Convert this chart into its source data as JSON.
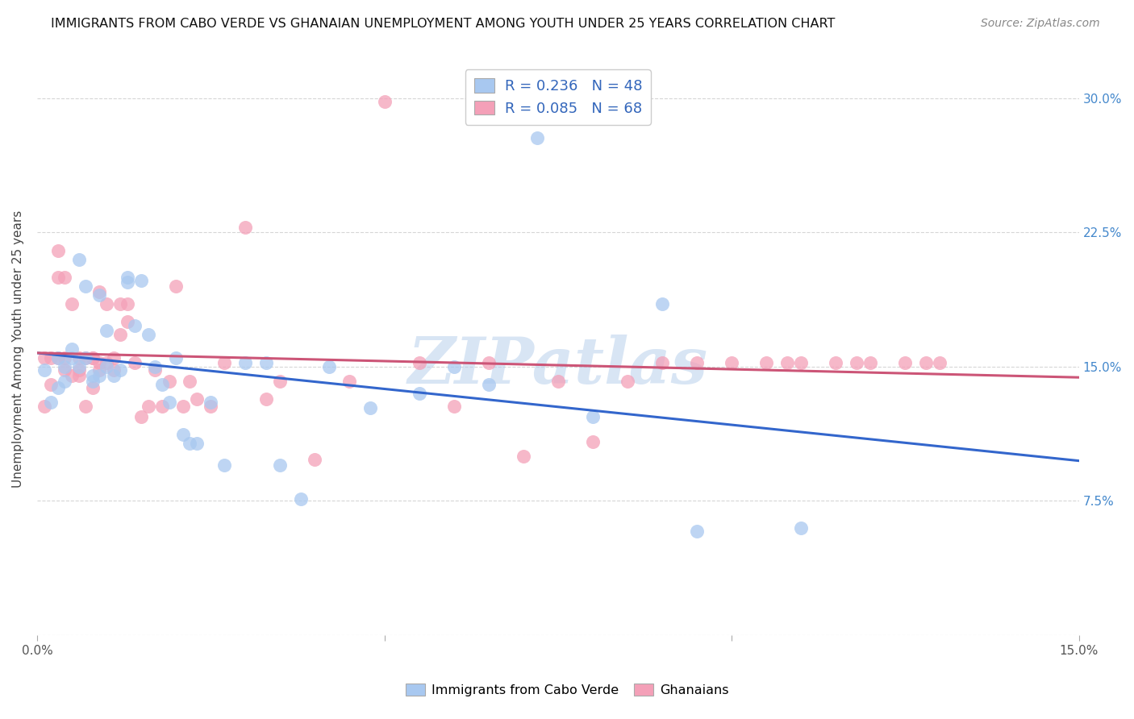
{
  "title": "IMMIGRANTS FROM CABO VERDE VS GHANAIAN UNEMPLOYMENT AMONG YOUTH UNDER 25 YEARS CORRELATION CHART",
  "source": "Source: ZipAtlas.com",
  "ylabel": "Unemployment Among Youth under 25 years",
  "xlim": [
    0.0,
    0.15
  ],
  "ylim": [
    0.0,
    0.32
  ],
  "xticks": [
    0.0,
    0.05,
    0.1,
    0.15
  ],
  "xticklabels": [
    "0.0%",
    "",
    "",
    "15.0%"
  ],
  "yticks": [
    0.0,
    0.075,
    0.15,
    0.225,
    0.3
  ],
  "yticklabels_right": [
    "",
    "7.5%",
    "15.0%",
    "22.5%",
    "30.0%"
  ],
  "watermark": "ZIPatlas",
  "color_blue": "#A8C8F0",
  "color_pink": "#F4A0B8",
  "line_blue": "#3366CC",
  "line_pink": "#CC5577",
  "cabo_verde_x": [
    0.001,
    0.002,
    0.003,
    0.003,
    0.004,
    0.004,
    0.005,
    0.005,
    0.006,
    0.006,
    0.007,
    0.007,
    0.008,
    0.008,
    0.009,
    0.009,
    0.01,
    0.01,
    0.011,
    0.012,
    0.013,
    0.013,
    0.014,
    0.015,
    0.016,
    0.017,
    0.018,
    0.019,
    0.02,
    0.021,
    0.022,
    0.023,
    0.025,
    0.027,
    0.03,
    0.033,
    0.035,
    0.038,
    0.042,
    0.048,
    0.055,
    0.06,
    0.065,
    0.072,
    0.08,
    0.09,
    0.095,
    0.11
  ],
  "cabo_verde_y": [
    0.148,
    0.13,
    0.155,
    0.138,
    0.142,
    0.15,
    0.155,
    0.16,
    0.21,
    0.15,
    0.195,
    0.155,
    0.145,
    0.142,
    0.19,
    0.145,
    0.17,
    0.15,
    0.145,
    0.148,
    0.2,
    0.197,
    0.173,
    0.198,
    0.168,
    0.15,
    0.14,
    0.13,
    0.155,
    0.112,
    0.107,
    0.107,
    0.13,
    0.095,
    0.152,
    0.152,
    0.095,
    0.076,
    0.15,
    0.127,
    0.135,
    0.15,
    0.14,
    0.278,
    0.122,
    0.185,
    0.058,
    0.06
  ],
  "ghanaian_x": [
    0.001,
    0.001,
    0.002,
    0.002,
    0.003,
    0.003,
    0.003,
    0.004,
    0.004,
    0.004,
    0.005,
    0.005,
    0.006,
    0.006,
    0.006,
    0.007,
    0.007,
    0.008,
    0.008,
    0.008,
    0.009,
    0.009,
    0.009,
    0.01,
    0.01,
    0.011,
    0.011,
    0.012,
    0.012,
    0.013,
    0.013,
    0.014,
    0.015,
    0.016,
    0.017,
    0.018,
    0.019,
    0.02,
    0.021,
    0.022,
    0.023,
    0.025,
    0.027,
    0.03,
    0.033,
    0.035,
    0.04,
    0.045,
    0.05,
    0.055,
    0.06,
    0.065,
    0.07,
    0.075,
    0.08,
    0.085,
    0.09,
    0.095,
    0.1,
    0.105,
    0.108,
    0.11,
    0.115,
    0.118,
    0.12,
    0.125,
    0.128,
    0.13
  ],
  "ghanaian_y": [
    0.128,
    0.155,
    0.14,
    0.155,
    0.2,
    0.155,
    0.215,
    0.148,
    0.155,
    0.2,
    0.145,
    0.185,
    0.148,
    0.155,
    0.145,
    0.128,
    0.155,
    0.155,
    0.138,
    0.155,
    0.192,
    0.152,
    0.148,
    0.185,
    0.152,
    0.148,
    0.155,
    0.168,
    0.185,
    0.175,
    0.185,
    0.152,
    0.122,
    0.128,
    0.148,
    0.128,
    0.142,
    0.195,
    0.128,
    0.142,
    0.132,
    0.128,
    0.152,
    0.228,
    0.132,
    0.142,
    0.098,
    0.142,
    0.298,
    0.152,
    0.128,
    0.152,
    0.1,
    0.142,
    0.108,
    0.142,
    0.152,
    0.152,
    0.152,
    0.152,
    0.152,
    0.152,
    0.152,
    0.152,
    0.152,
    0.152,
    0.152,
    0.152
  ],
  "legend_label_blue": "Immigrants from Cabo Verde",
  "legend_label_pink": "Ghanaians"
}
